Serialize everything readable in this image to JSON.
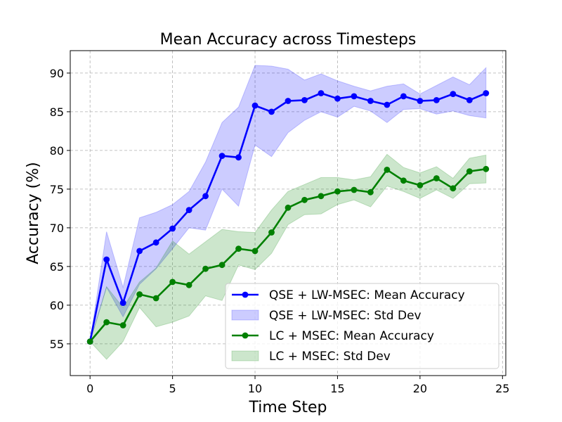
{
  "chart_data": {
    "type": "line",
    "title": "Mean Accuracy across Timesteps",
    "xlabel": "Time Step",
    "ylabel": "Accuracy (%)",
    "xlim": [
      -1.2,
      25.2
    ],
    "ylim": [
      50.9,
      92.9
    ],
    "xticks": [
      0,
      5,
      10,
      15,
      20,
      25
    ],
    "yticks": [
      55,
      60,
      65,
      70,
      75,
      80,
      85,
      90
    ],
    "grid": true,
    "legend_position": "lower-right",
    "x": [
      0,
      1,
      2,
      3,
      4,
      5,
      6,
      7,
      8,
      9,
      10,
      11,
      12,
      13,
      14,
      15,
      16,
      17,
      18,
      19,
      20,
      21,
      22,
      23,
      24
    ],
    "series": [
      {
        "name": "QSE + LW-MSEC: Mean Accuracy",
        "band_name": "QSE + LW-MSEC: Std Dev",
        "color": "#0000ff",
        "band_color": "#0000ff",
        "values": [
          55.3,
          65.9,
          60.3,
          67.0,
          68.1,
          69.9,
          72.3,
          74.1,
          79.3,
          79.1,
          85.8,
          85.0,
          86.4,
          86.5,
          87.4,
          86.7,
          87.0,
          86.4,
          85.9,
          87.0,
          86.4,
          86.5,
          87.3,
          86.5,
          87.4
        ],
        "upper": [
          55.3,
          69.5,
          62.3,
          71.3,
          72.0,
          73.0,
          74.7,
          78.5,
          83.6,
          85.6,
          91.0,
          90.9,
          90.5,
          89.1,
          89.9,
          89.0,
          88.3,
          87.7,
          88.3,
          88.6,
          87.3,
          88.4,
          89.5,
          88.5,
          90.7
        ],
        "lower": [
          55.3,
          62.3,
          58.5,
          62.7,
          64.7,
          67.3,
          70.0,
          69.7,
          75.0,
          72.8,
          80.7,
          79.2,
          82.3,
          83.9,
          85.0,
          84.3,
          85.7,
          85.1,
          83.6,
          85.3,
          85.4,
          84.7,
          85.1,
          84.5,
          84.2
        ]
      },
      {
        "name": "LC + MSEC: Mean Accuracy",
        "band_name": "LC + MSEC: Std Dev",
        "color": "#008000",
        "band_color": "#008000",
        "values": [
          55.3,
          57.8,
          57.4,
          61.4,
          60.9,
          63.0,
          62.6,
          64.7,
          65.2,
          67.3,
          67.0,
          69.4,
          72.6,
          73.6,
          74.1,
          74.7,
          74.9,
          74.6,
          77.5,
          76.1,
          75.5,
          76.4,
          75.1,
          77.3,
          77.6
        ],
        "upper": [
          55.3,
          62.4,
          59.7,
          63.0,
          64.8,
          68.3,
          66.6,
          68.2,
          69.8,
          69.5,
          69.4,
          72.3,
          74.7,
          75.6,
          76.5,
          76.5,
          76.2,
          76.6,
          79.5,
          77.8,
          77.1,
          77.9,
          76.4,
          79.0,
          79.4
        ],
        "lower": [
          55.3,
          53.0,
          55.3,
          59.7,
          57.2,
          57.8,
          58.6,
          61.2,
          60.6,
          65.2,
          64.6,
          66.7,
          70.4,
          71.7,
          71.8,
          73.0,
          73.6,
          72.7,
          75.4,
          74.7,
          73.8,
          74.9,
          73.8,
          75.7,
          75.8
        ]
      }
    ]
  }
}
